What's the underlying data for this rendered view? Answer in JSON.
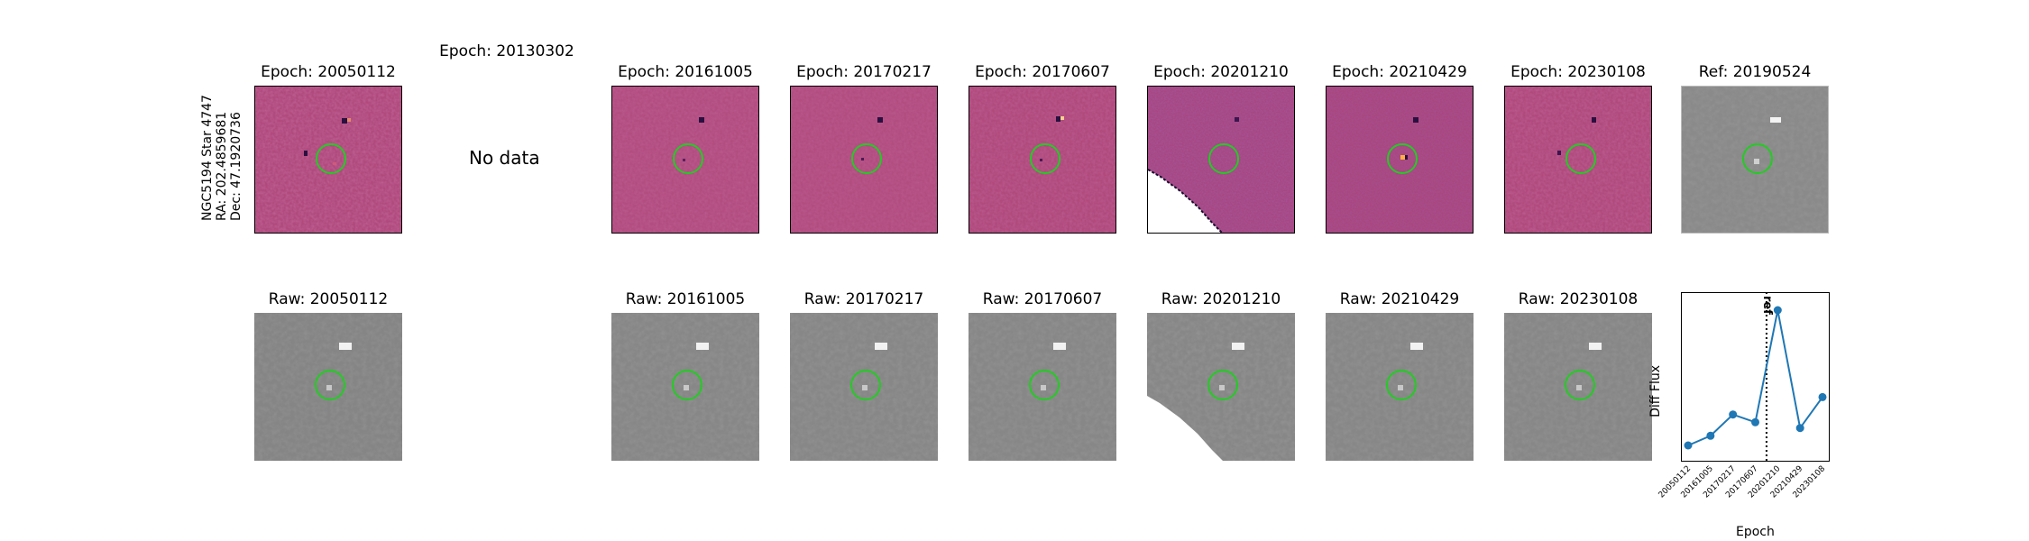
{
  "target": {
    "name": "NGC5194 Star 4747",
    "ra": "RA: 202.4859681",
    "dec": "Dec: 47.1920736"
  },
  "no_data_text": "No data",
  "diff_row": [
    {
      "title": "Epoch: 20050112",
      "kind": "diff"
    },
    {
      "title": "Epoch: 20130302",
      "kind": "nodata"
    },
    {
      "title": "Epoch: 20161005",
      "kind": "diff"
    },
    {
      "title": "Epoch: 20170217",
      "kind": "diff"
    },
    {
      "title": "Epoch: 20170607",
      "kind": "diff"
    },
    {
      "title": "Epoch: 20201210",
      "kind": "diff-noisy"
    },
    {
      "title": "Epoch: 20210429",
      "kind": "diff"
    },
    {
      "title": "Epoch: 20230108",
      "kind": "diff"
    },
    {
      "title": "Ref: 20190524",
      "kind": "ref"
    }
  ],
  "raw_row": [
    {
      "title": "Raw: 20050112"
    },
    {
      "title": "Raw: 20161005"
    },
    {
      "title": "Raw: 20170217"
    },
    {
      "title": "Raw: 20170607"
    },
    {
      "title": "Raw: 20201210"
    },
    {
      "title": "Raw: 20210429"
    },
    {
      "title": "Raw: 20230108"
    }
  ],
  "colors": {
    "diff_bg": "#b04a7d",
    "raw_bg": "#858585",
    "marker_circle": "#22cc22",
    "line": "#1f77b4"
  },
  "chart_data": {
    "type": "line",
    "xlabel": "Epoch",
    "ylabel": "Diff Flux",
    "categories": [
      "20050112",
      "20161005",
      "20170217",
      "20170607",
      "20201210",
      "20210429",
      "20230108"
    ],
    "series": [
      {
        "values": [
          0.0,
          0.05,
          0.16,
          0.12,
          0.7,
          0.09,
          0.25
        ]
      }
    ],
    "reference_line": {
      "label": "ref",
      "position_between": [
        "20170607",
        "20201210"
      ]
    },
    "grid": false
  }
}
